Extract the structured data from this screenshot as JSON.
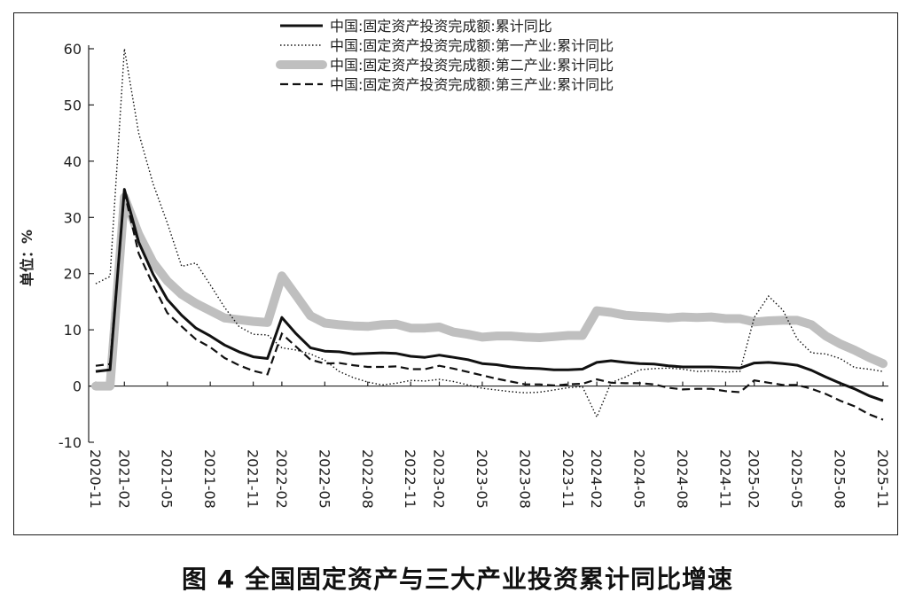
{
  "caption": "图 4   全国固定资产与三大产业投资累计同比增速",
  "chart_data": {
    "type": "line",
    "title": "",
    "ylabel": "单位：%",
    "xlabel": "",
    "ylim": [
      -10,
      60
    ],
    "yticks": [
      -10,
      0,
      10,
      20,
      30,
      40,
      50,
      60
    ],
    "x": [
      "2020-11",
      "2020-12",
      "2021-02",
      "2021-03",
      "2021-04",
      "2021-05",
      "2021-06",
      "2021-07",
      "2021-08",
      "2021-09",
      "2021-10",
      "2021-11",
      "2021-12",
      "2022-02",
      "2022-03",
      "2022-04",
      "2022-05",
      "2022-06",
      "2022-07",
      "2022-08",
      "2022-09",
      "2022-10",
      "2022-11",
      "2022-12",
      "2023-02",
      "2023-03",
      "2023-04",
      "2023-05",
      "2023-06",
      "2023-07",
      "2023-08",
      "2023-09",
      "2023-10",
      "2023-11",
      "2023-12",
      "2024-02",
      "2024-03",
      "2024-04",
      "2024-05",
      "2024-06",
      "2024-07",
      "2024-08",
      "2024-09",
      "2024-10",
      "2024-11",
      "2024-12",
      "2025-02",
      "2025-03",
      "2025-04",
      "2025-05",
      "2025-06",
      "2025-07",
      "2025-08",
      "2025-09",
      "2025-10",
      "2025-11"
    ],
    "xtick_labels": [
      "2020-11",
      "2021-02",
      "2021-05",
      "2021-08",
      "2021-11",
      "2022-02",
      "2022-05",
      "2022-08",
      "2022-11",
      "2023-02",
      "2023-05",
      "2023-08",
      "2023-11",
      "2024-02",
      "2024-05",
      "2024-08",
      "2024-11",
      "2025-02",
      "2025-05",
      "2025-08",
      "2025-11"
    ],
    "legend_position": "top",
    "series": [
      {
        "name": "中国:固定资产投资完成额:累计同比",
        "style": "solid",
        "color": "#111111",
        "values": [
          2.6,
          2.9,
          35.0,
          25.6,
          19.9,
          15.4,
          12.6,
          10.3,
          8.9,
          7.3,
          6.1,
          5.2,
          4.9,
          12.2,
          9.3,
          6.8,
          6.2,
          6.1,
          5.7,
          5.8,
          5.9,
          5.8,
          5.3,
          5.1,
          5.5,
          5.1,
          4.7,
          4.0,
          3.8,
          3.4,
          3.2,
          3.1,
          2.9,
          2.9,
          3.0,
          4.2,
          4.5,
          4.2,
          4.0,
          3.9,
          3.6,
          3.4,
          3.4,
          3.4,
          3.3,
          3.2,
          4.1,
          4.2,
          4.0,
          3.7,
          2.8,
          1.6,
          0.5,
          -0.5,
          -1.7,
          -2.6
        ]
      },
      {
        "name": "中国:固定资产投资完成额:第一产业:累计同比",
        "style": "dotted",
        "color": "#111111",
        "values": [
          18.2,
          19.5,
          60.0,
          45.0,
          36.0,
          29.0,
          21.3,
          21.9,
          18.0,
          14.0,
          10.6,
          9.2,
          9.1,
          6.8,
          6.4,
          5.7,
          4.6,
          2.6,
          1.5,
          0.7,
          0.2,
          0.5,
          1.0,
          0.9,
          1.2,
          0.8,
          0.2,
          -0.4,
          -0.7,
          -1.0,
          -1.2,
          -1.1,
          -0.7,
          -0.3,
          -0.1,
          -5.5,
          0.6,
          1.6,
          2.9,
          3.1,
          3.2,
          3.0,
          2.6,
          2.7,
          2.5,
          2.6,
          12.2,
          16.0,
          13.5,
          8.4,
          5.9,
          5.7,
          4.9,
          3.3,
          3.0,
          2.6
        ]
      },
      {
        "name": "中国:固定资产投资完成额:第二产业:累计同比",
        "style": "thick-gray",
        "color": "#bfbfbf",
        "values": [
          0.0,
          0.0,
          33.6,
          27.0,
          22.0,
          18.7,
          16.3,
          14.7,
          13.4,
          12.1,
          11.8,
          11.5,
          11.3,
          19.6,
          16.1,
          12.5,
          11.2,
          10.9,
          10.7,
          10.6,
          10.9,
          11.0,
          10.3,
          10.3,
          10.5,
          9.6,
          9.2,
          8.7,
          8.9,
          8.9,
          8.7,
          8.6,
          8.8,
          9.0,
          9.0,
          13.4,
          13.1,
          12.6,
          12.4,
          12.3,
          12.1,
          12.3,
          12.2,
          12.3,
          12.0,
          12.0,
          11.4,
          11.6,
          11.7,
          11.7,
          10.9,
          8.9,
          7.5,
          6.4,
          5.1,
          4.0
        ]
      },
      {
        "name": "中国:固定资产投资完成额:第三产业:累计同比",
        "style": "dashed",
        "color": "#111111",
        "values": [
          3.6,
          3.9,
          34.5,
          23.6,
          18.0,
          13.0,
          10.6,
          8.3,
          6.9,
          5.0,
          3.7,
          2.7,
          2.1,
          9.3,
          7.0,
          4.7,
          4.0,
          4.1,
          3.7,
          3.4,
          3.4,
          3.5,
          3.0,
          3.0,
          3.6,
          3.1,
          2.5,
          1.9,
          1.3,
          0.8,
          0.3,
          0.3,
          0.1,
          0.3,
          0.4,
          1.2,
          0.6,
          0.5,
          0.5,
          0.3,
          -0.3,
          -0.6,
          -0.5,
          -0.5,
          -0.9,
          -1.1,
          1.0,
          0.6,
          0.2,
          0.2,
          -0.5,
          -1.4,
          -2.6,
          -3.6,
          -5.0,
          -6.0
        ]
      }
    ]
  }
}
